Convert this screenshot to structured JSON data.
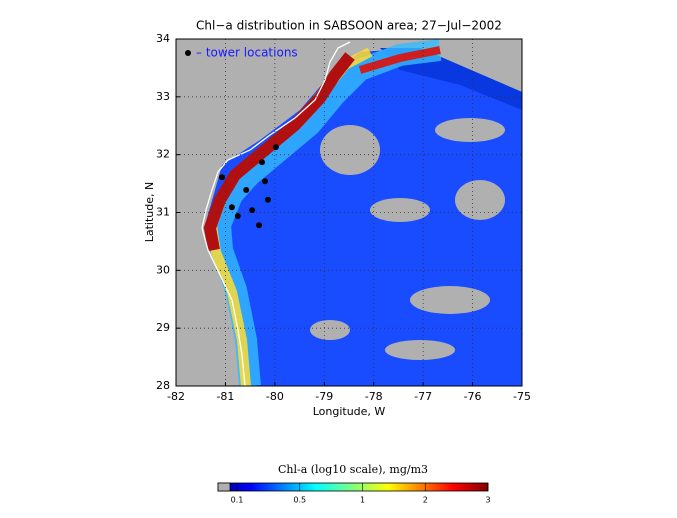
{
  "title": "Chl−a distribution in SABSOON area; 27−Jul−2002",
  "x_label": "Longitude, W",
  "y_label": "Latitude, N",
  "xlim": [
    -82,
    -75
  ],
  "ylim": [
    28,
    34
  ],
  "xticks": [
    -82,
    -81,
    -80,
    -79,
    -78,
    -77,
    -76,
    -75
  ],
  "yticks": [
    28,
    29,
    30,
    31,
    32,
    33,
    34
  ],
  "legend": "– tower locations",
  "towers": [
    {
      "lon": -81.07,
      "lat": 31.61
    },
    {
      "lon": -80.26,
      "lat": 31.87
    },
    {
      "lon": -79.98,
      "lat": 32.13
    },
    {
      "lon": -80.58,
      "lat": 31.39
    },
    {
      "lon": -80.2,
      "lat": 31.54
    },
    {
      "lon": -80.87,
      "lat": 31.09
    },
    {
      "lon": -80.46,
      "lat": 31.04
    },
    {
      "lon": -80.14,
      "lat": 31.22
    },
    {
      "lon": -80.75,
      "lat": 30.94
    },
    {
      "lon": -80.32,
      "lat": 30.78
    }
  ],
  "colorbar": {
    "label": "Chl-a (log10 scale), mg/m3",
    "ticks": [
      0.1,
      0.5,
      1,
      2,
      3
    ]
  }
}
